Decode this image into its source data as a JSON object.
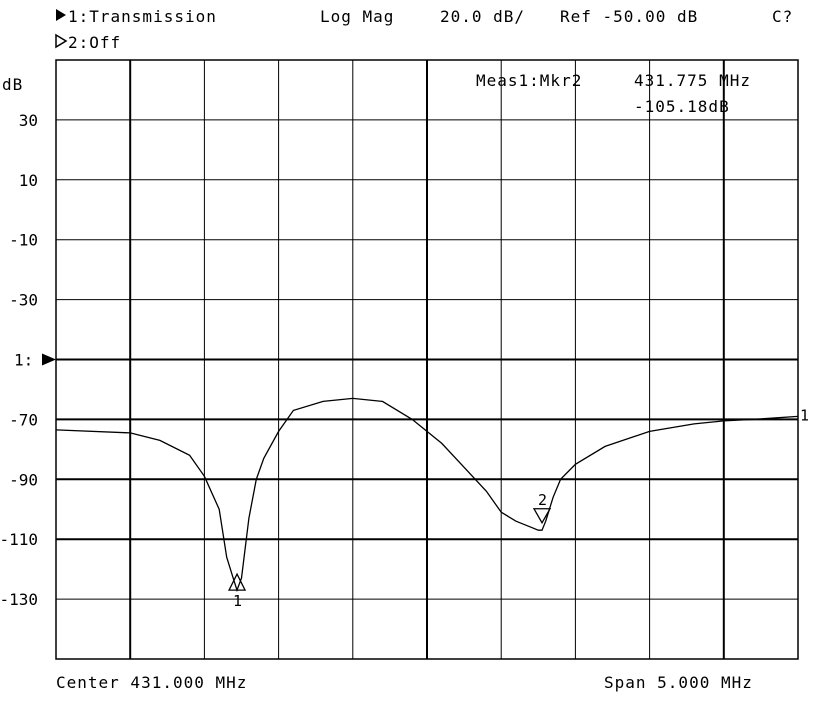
{
  "header": {
    "ch1_label": "1:Transmission",
    "ch2_label": "2:Off",
    "format": "Log Mag",
    "scale": "20.0 dB/",
    "reference": "Ref -50.00 dB",
    "status": "C?"
  },
  "marker_readout": {
    "title": "Meas1:Mkr2",
    "frequency": "431.775 MHz",
    "value": "-105.18dB"
  },
  "footer": {
    "center": "Center 431.000 MHz",
    "span": "Span 5.000 MHz"
  },
  "chart_data": {
    "type": "line",
    "ylabel": "dB",
    "ylim": [
      -150,
      50
    ],
    "xlim": [
      428.5,
      433.5
    ],
    "y_tick_labels": [
      "30",
      "10",
      "-10",
      "-30",
      "1:",
      "-70",
      "-90",
      "-110",
      "-130"
    ],
    "y_tick_values": [
      30,
      10,
      -10,
      -30,
      -50,
      -70,
      -90,
      -110,
      -130
    ],
    "reference_level": -50,
    "grid": true,
    "trace_end_label": "1",
    "series": [
      {
        "x": [
          428.5,
          429.0,
          429.2,
          429.4,
          429.5,
          429.6,
          429.65,
          429.7,
          429.72,
          429.75,
          429.8,
          429.85,
          429.9,
          430.0,
          430.1,
          430.3,
          430.5,
          430.7,
          430.9,
          431.1,
          431.25,
          431.4,
          431.5,
          431.6,
          431.7,
          431.75,
          431.775,
          431.8,
          431.85,
          431.9,
          432.0,
          432.2,
          432.5,
          432.8,
          433.0,
          433.2,
          433.5
        ],
        "y": [
          -73.5,
          -74.5,
          -77,
          -82,
          -89,
          -100,
          -116,
          -124,
          -127,
          -123,
          -103,
          -90,
          -83,
          -74,
          -67,
          -64,
          -63,
          -64,
          -70,
          -78,
          -86,
          -94,
          -101,
          -104,
          -106,
          -107,
          -107,
          -104,
          -96,
          -90,
          -85,
          -79,
          -74,
          -71.5,
          -70.5,
          -70,
          -69
        ]
      }
    ],
    "markers": [
      {
        "label": "1",
        "x": 429.72,
        "y": -123
      },
      {
        "label": "2",
        "x": 431.775,
        "y": -105.18
      }
    ]
  }
}
